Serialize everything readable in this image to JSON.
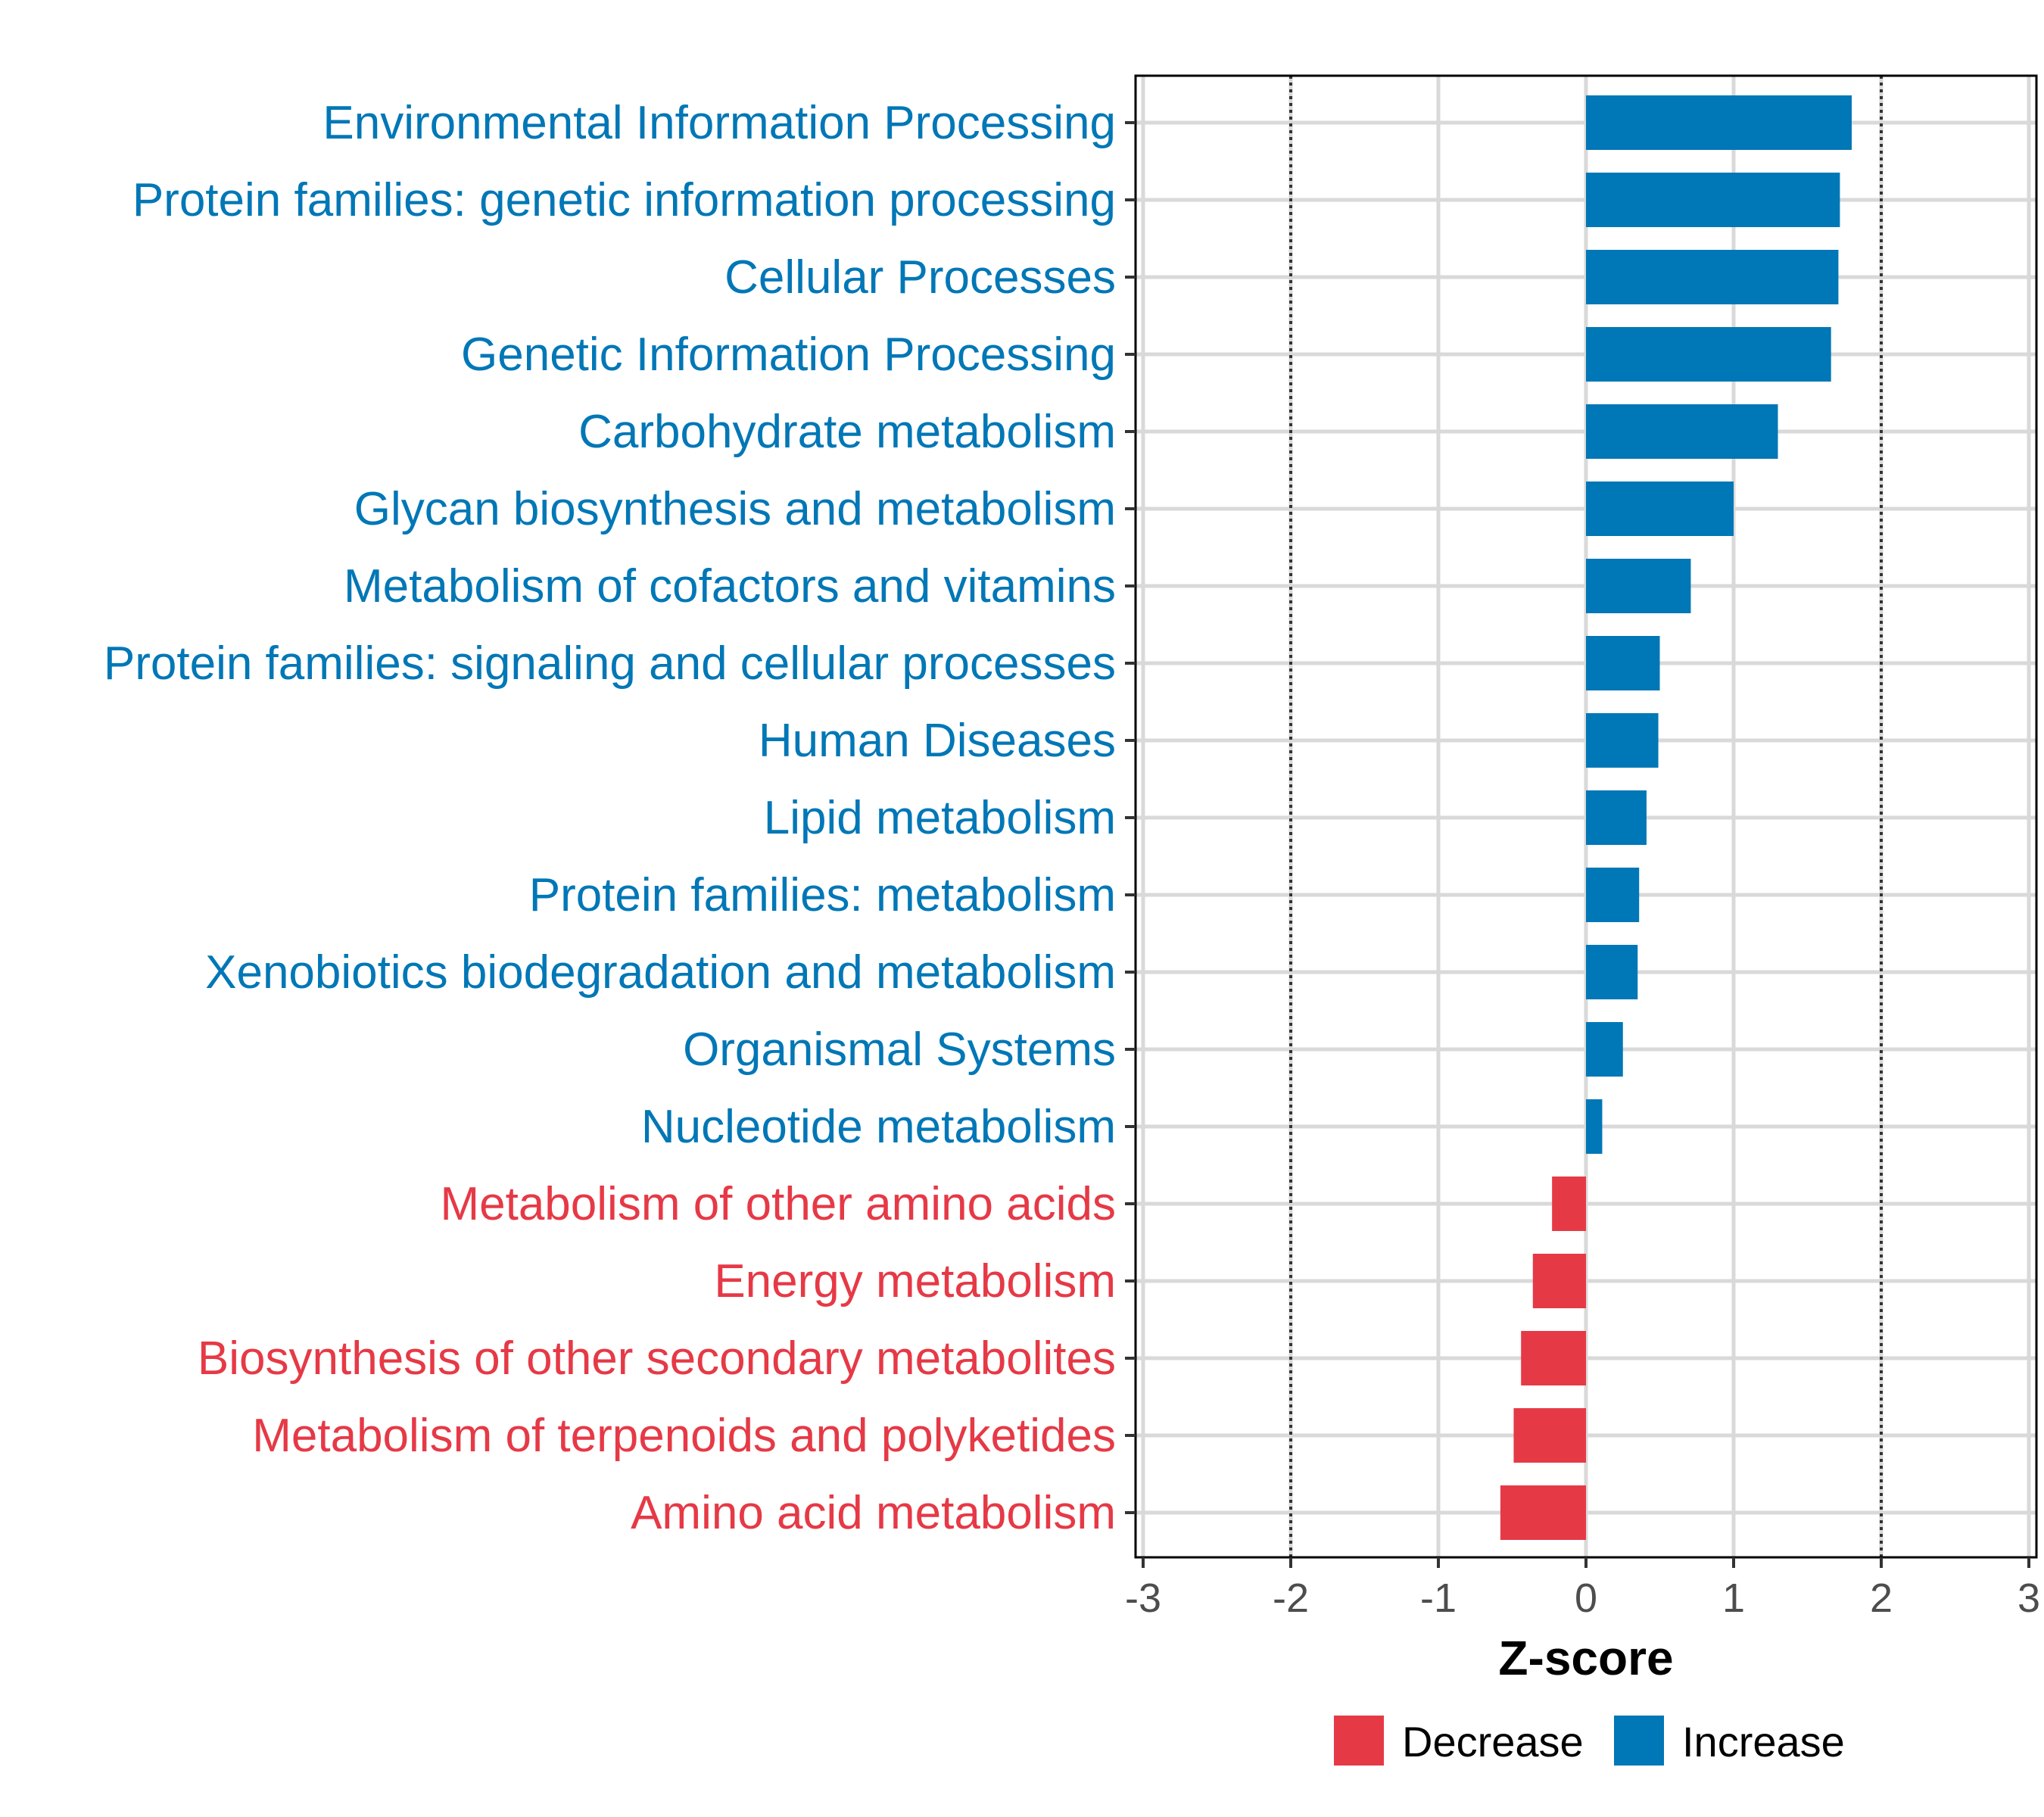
{
  "chart_data": {
    "type": "bar",
    "orientation": "horizontal",
    "title": "",
    "xlabel": "Z-score",
    "ylabel": "",
    "xlim": [
      -3,
      3
    ],
    "xticks": [
      "-3",
      "-2",
      "-1",
      "0",
      "1",
      "2",
      "3"
    ],
    "reference_lines": [
      -2,
      2
    ],
    "grid": true,
    "legend_position": "bottom",
    "colors": {
      "Decrease": "#E63946",
      "Increase": "#0077B6"
    },
    "legend": [
      {
        "label": "Decrease",
        "color": "#E63946"
      },
      {
        "label": "Increase",
        "color": "#0077B6"
      }
    ],
    "categories": [
      "Environmental Information Processing",
      "Protein families: genetic information processing",
      "Cellular Processes",
      "Genetic Information Processing",
      "Carbohydrate metabolism",
      "Glycan biosynthesis and metabolism",
      "Metabolism of cofactors and vitamins",
      "Protein families: signaling and cellular processes",
      "Human Diseases",
      "Lipid metabolism",
      "Protein families: metabolism",
      "Xenobiotics biodegradation and metabolism",
      "Organismal Systems",
      "Nucleotide metabolism",
      "Metabolism of other amino acids",
      "Energy metabolism",
      "Biosynthesis of other secondary metabolites",
      "Metabolism of terpenoids and polyketides",
      "Amino acid metabolism"
    ],
    "values": [
      1.8,
      1.72,
      1.71,
      1.66,
      1.3,
      1.0,
      0.71,
      0.5,
      0.49,
      0.41,
      0.36,
      0.35,
      0.25,
      0.11,
      -0.23,
      -0.36,
      -0.44,
      -0.49,
      -0.58
    ],
    "groups": [
      "Increase",
      "Increase",
      "Increase",
      "Increase",
      "Increase",
      "Increase",
      "Increase",
      "Increase",
      "Increase",
      "Increase",
      "Increase",
      "Increase",
      "Increase",
      "Increase",
      "Decrease",
      "Decrease",
      "Decrease",
      "Decrease",
      "Decrease"
    ]
  }
}
